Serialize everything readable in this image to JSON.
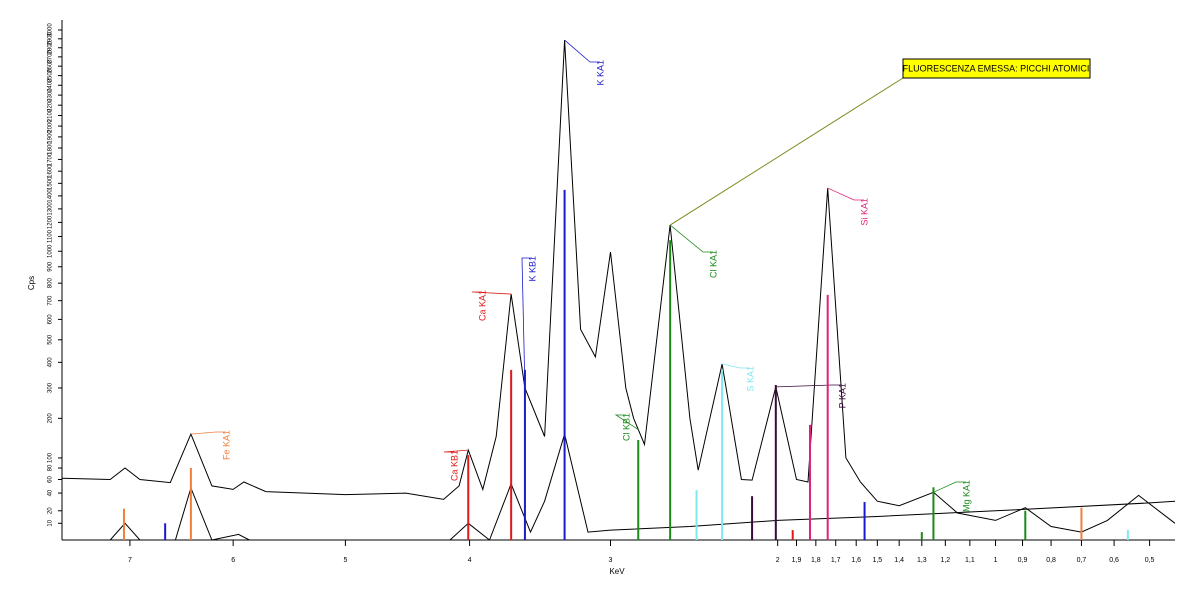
{
  "chart_data": {
    "type": "spectrum",
    "x_label": "KeV",
    "y_label": "Cps",
    "xscale": "sqrt",
    "yscale": "sqrt",
    "xlim": [
      7.7,
      0.434
    ],
    "ylim": [
      2,
      3000
    ],
    "xticks": [
      7,
      6,
      5,
      4,
      3,
      2,
      {
        "value": 1.9,
        "label": "1,9"
      },
      {
        "value": 1.8,
        "label": "1,8"
      },
      {
        "value": 1.7,
        "label": "1,7"
      },
      {
        "value": 1.6,
        "label": "1,6"
      },
      {
        "value": 1.5,
        "label": "1,5"
      },
      {
        "value": 1.4,
        "label": "1,4"
      },
      {
        "value": 1.3,
        "label": "1,3"
      },
      {
        "value": 1.2,
        "label": "1,2"
      },
      {
        "value": 1.1,
        "label": "1,1"
      },
      1,
      {
        "value": 0.9,
        "label": "0,9"
      },
      {
        "value": 0.8,
        "label": "0,8"
      },
      {
        "value": 0.7,
        "label": "0,7"
      },
      {
        "value": 0.6,
        "label": "0,6"
      },
      {
        "value": 0.5,
        "label": "0,5"
      }
    ],
    "yticks": [
      10,
      20,
      40,
      60,
      80,
      100,
      200,
      300,
      400,
      500,
      600,
      700,
      800,
      900,
      1000,
      1100,
      1200,
      1300,
      1400,
      1500,
      1600,
      1700,
      1800,
      1900,
      2000,
      2100,
      2200,
      2300,
      2400,
      2500,
      2600,
      2700,
      2800,
      2900,
      3000
    ],
    "series": [
      {
        "color": "#000000",
        "x": [
          7.7,
          7.2,
          7.05,
          6.9,
          6.6,
          6.4,
          6.2,
          6.0,
          5.9,
          5.7,
          5.0,
          4.5,
          4.2,
          4.08,
          4.01,
          3.9,
          3.8,
          3.69,
          3.59,
          3.45,
          3.31,
          3.2,
          3.1,
          3.0,
          2.9,
          2.85,
          2.78,
          2.62,
          2.5,
          2.45,
          2.31,
          2.2,
          2.14,
          2.01,
          1.9,
          1.84,
          1.74,
          1.65,
          1.58,
          1.5,
          1.4,
          1.25,
          1.15,
          1.0,
          0.89,
          0.8,
          0.7,
          0.62,
          0.53,
          0.434
        ],
        "values": [
          62,
          60,
          80,
          60,
          55,
          156,
          50,
          45,
          56,
          42,
          38,
          40,
          32,
          50,
          117,
          45,
          150,
          737,
          300,
          150,
          2886,
          550,
          423,
          995,
          300,
          200,
          130,
          1181,
          200,
          76,
          393,
          60,
          59,
          304,
          60,
          56,
          1462,
          100,
          56,
          30,
          25,
          41,
          18,
          12,
          23,
          8,
          5,
          12,
          37,
          10
        ]
      },
      {
        "color": "#000000",
        "x": [
          7.2,
          7.05,
          6.9,
          6.55,
          6.4,
          6.2,
          5.95,
          5.85,
          4.15,
          4.01,
          3.85,
          3.69,
          3.55,
          3.45,
          3.31,
          3.15,
          3.0,
          2.5,
          2.0,
          1.5,
          1.0,
          0.5,
          0.434
        ],
        "values": [
          2,
          10,
          2,
          2,
          47,
          2,
          4,
          2,
          2,
          10,
          2,
          53,
          5,
          30,
          156,
          5,
          6,
          8,
          12,
          15,
          20,
          28,
          30
        ]
      }
    ],
    "peaks": {
      "x": [
        7.06,
        6.65,
        6.4,
        4.01,
        3.69,
        3.59,
        3.31,
        2.82,
        2.62,
        2.46,
        2.31,
        2.14,
        2.01,
        1.92,
        1.83,
        1.74,
        1.56,
        1.3,
        1.25,
        0.89,
        0.7,
        0.56
      ],
      "values": [
        22,
        10,
        80,
        106,
        369,
        369,
        1447,
        141,
        1074,
        44,
        369,
        36,
        311,
        6,
        181,
        732,
        29,
        5,
        48,
        20,
        23,
        6
      ],
      "colors": [
        "#f07f3c",
        "#1a1acc",
        "#f07f3c",
        "#e01818",
        "#e01818",
        "#1a1acc",
        "#1a1acc",
        "#1a8a1a",
        "#1a8a1a",
        "#7fe8f0",
        "#7fe8f0",
        "#3a0a3a",
        "#3a0a3a",
        "#e01818",
        "#e0207a",
        "#e0207a",
        "#1a1acc",
        "#1a8a1a",
        "#1a8a1a",
        "#1a8a1a",
        "#f07f3c",
        "#7fe8f0"
      ],
      "labels": [
        null,
        null,
        "Fe KA1",
        "Ca KB1",
        "Ca KA1",
        "K KB1",
        "K KA1",
        "Cl KB1",
        "Cl KA1",
        null,
        "S KA1",
        null,
        "P KA1",
        null,
        null,
        "Si KA1",
        null,
        null,
        "Mg KA1",
        null,
        null,
        null
      ]
    },
    "annotation": {
      "text": "FLUORESCENZA EMESSA: PICCHI ATOMICI",
      "peak": 8
    }
  }
}
